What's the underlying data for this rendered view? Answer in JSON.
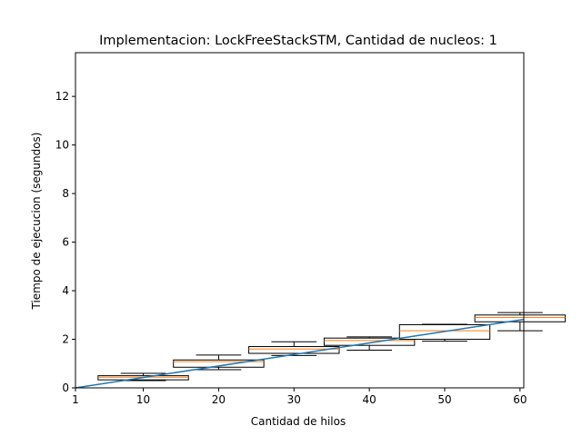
{
  "chart_data": {
    "type": "box",
    "title": "Implementacion: LockFreeStackSTM, Cantidad de nucleos: 1",
    "xlabel": "Cantidad de hilos",
    "ylabel": "Tiempo de ejecucion (segundos)",
    "xlim": [
      1,
      60.5
    ],
    "ylim": [
      0,
      13.8
    ],
    "x_ticks": [
      1,
      10,
      20,
      30,
      40,
      50,
      60
    ],
    "y_ticks": [
      0,
      2,
      4,
      6,
      8,
      10,
      12
    ],
    "grid": false,
    "legend": "none",
    "box_width": 12,
    "boxes": [
      {
        "x": 10,
        "whisker_low": 0.3,
        "q1": 0.33,
        "median": 0.44,
        "q3": 0.5,
        "whisker_high": 0.6
      },
      {
        "x": 20,
        "whisker_low": 0.75,
        "q1": 0.85,
        "median": 1.08,
        "q3": 1.15,
        "whisker_high": 1.35
      },
      {
        "x": 30,
        "whisker_low": 1.33,
        "q1": 1.42,
        "median": 1.6,
        "q3": 1.7,
        "whisker_high": 1.9
      },
      {
        "x": 40,
        "whisker_low": 1.55,
        "q1": 1.75,
        "median": 1.95,
        "q3": 2.05,
        "whisker_high": 2.1
      },
      {
        "x": 50,
        "whisker_low": 1.92,
        "q1": 2.0,
        "median": 2.35,
        "q3": 2.6,
        "whisker_high": 2.62
      },
      {
        "x": 60,
        "whisker_low": 2.35,
        "q1": 2.72,
        "median": 2.9,
        "q3": 3.0,
        "whisker_high": 3.1
      }
    ],
    "trend_line": {
      "x": [
        1,
        60.5
      ],
      "y": [
        0,
        2.82
      ],
      "color": "#1f77b4"
    },
    "colors": {
      "box": "#000000",
      "median": "#ff7f0e",
      "fill": "#ffffff"
    }
  }
}
